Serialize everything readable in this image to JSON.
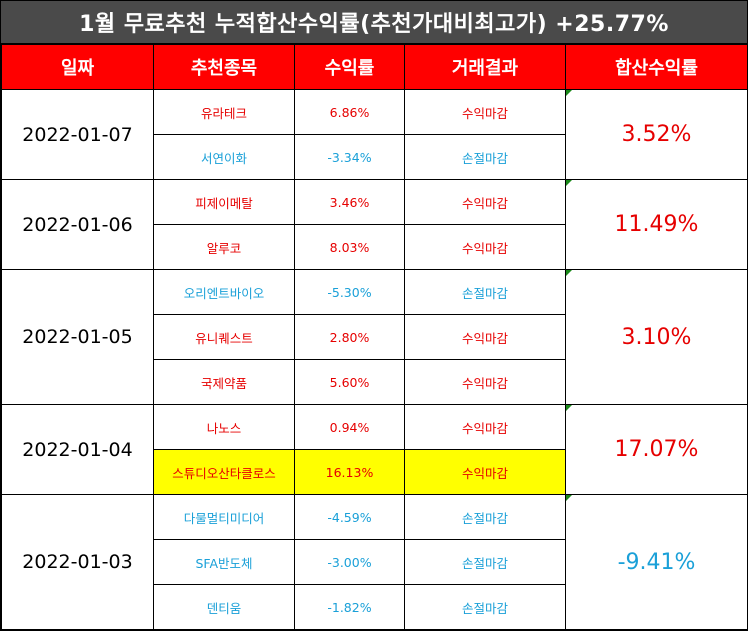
{
  "title": "1월 무료추천 누적합산수익률(추천가대비최고가) +25.77%",
  "headers": [
    "일짜",
    "추천종목",
    "수익률",
    "거래결과",
    "합산수익률"
  ],
  "groups": [
    {
      "date": "2022-01-07",
      "total": "3.52%",
      "total_trend": "up",
      "rows": [
        {
          "stock": "유라테크",
          "ret": "6.86%",
          "result": "수익마감",
          "trend": "up",
          "highlight": false
        },
        {
          "stock": "서연이화",
          "ret": "-3.34%",
          "result": "손절마감",
          "trend": "down",
          "highlight": false
        }
      ]
    },
    {
      "date": "2022-01-06",
      "total": "11.49%",
      "total_trend": "up",
      "rows": [
        {
          "stock": "피제이메탈",
          "ret": "3.46%",
          "result": "수익마감",
          "trend": "up",
          "highlight": false
        },
        {
          "stock": "알루코",
          "ret": "8.03%",
          "result": "수익마감",
          "trend": "up",
          "highlight": false
        }
      ]
    },
    {
      "date": "2022-01-05",
      "total": "3.10%",
      "total_trend": "up",
      "rows": [
        {
          "stock": "오리엔트바이오",
          "ret": "-5.30%",
          "result": "손절마감",
          "trend": "down",
          "highlight": false
        },
        {
          "stock": "유니퀘스트",
          "ret": "2.80%",
          "result": "수익마감",
          "trend": "up",
          "highlight": false
        },
        {
          "stock": "국제약품",
          "ret": "5.60%",
          "result": "수익마감",
          "trend": "up",
          "highlight": false
        }
      ]
    },
    {
      "date": "2022-01-04",
      "total": "17.07%",
      "total_trend": "up",
      "rows": [
        {
          "stock": "나노스",
          "ret": "0.94%",
          "result": "수익마감",
          "trend": "up",
          "highlight": false
        },
        {
          "stock": "스튜디오산타클로스",
          "ret": "16.13%",
          "result": "수익마감",
          "trend": "up",
          "highlight": true
        }
      ]
    },
    {
      "date": "2022-01-03",
      "total": "-9.41%",
      "total_trend": "down",
      "rows": [
        {
          "stock": "다물멀티미디어",
          "ret": "-4.59%",
          "result": "손절마감",
          "trend": "down",
          "highlight": false
        },
        {
          "stock": "SFA반도체",
          "ret": "-3.00%",
          "result": "손절마감",
          "trend": "down",
          "highlight": false
        },
        {
          "stock": "덴티움",
          "ret": "-1.82%",
          "result": "손절마감",
          "trend": "down",
          "highlight": false
        }
      ]
    }
  ],
  "colors": {
    "header_bg": "#ff0000",
    "title_bg": "#4a4a4a",
    "up": "#e60000",
    "down": "#1aa0d8",
    "highlight": "#ffff00"
  }
}
